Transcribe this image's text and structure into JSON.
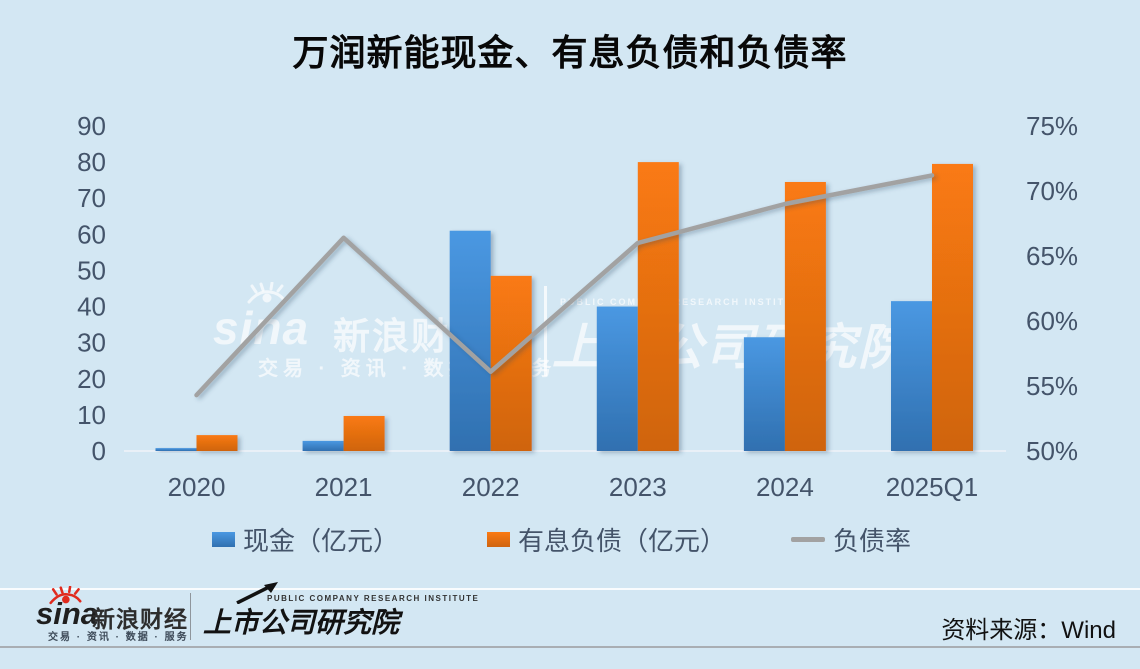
{
  "title": "万润新能现金、有息负债和负债率",
  "chart_data": {
    "type": "bar+line",
    "title": "万润新能现金、有息负债和负债率",
    "categories": [
      "2020",
      "2021",
      "2022",
      "2023",
      "2024",
      "2025Q1"
    ],
    "series": [
      {
        "name": "现金（亿元）",
        "type": "bar",
        "axis": "left",
        "values": [
          0.8,
          2.8,
          61,
          40,
          31.5,
          41.5
        ]
      },
      {
        "name": "有息负债（亿元）",
        "type": "bar",
        "axis": "left",
        "values": [
          4.4,
          9.7,
          48.5,
          80,
          74.5,
          79.5
        ]
      },
      {
        "name": "负债率",
        "type": "line",
        "axis": "right",
        "unit": "%",
        "values": [
          54.3,
          66.4,
          56.1,
          66.0,
          69.0,
          71.2
        ]
      }
    ],
    "left_axis": {
      "min": 0,
      "max": 90,
      "step": 10,
      "ticks": [
        "90",
        "80",
        "70",
        "60",
        "50",
        "40",
        "30",
        "20",
        "10",
        "0"
      ]
    },
    "right_axis": {
      "min": 50,
      "max": 75,
      "step": 5,
      "ticks": [
        "75%",
        "70%",
        "65%",
        "60%",
        "55%",
        "50%"
      ]
    },
    "grid": false,
    "legend_position": "bottom",
    "source": "Wind"
  },
  "legend": {
    "items": [
      {
        "label": "现金（亿元）",
        "swatch": "blue-square"
      },
      {
        "label": "有息负债（亿元）",
        "swatch": "orange-square"
      },
      {
        "label": "负债率",
        "swatch": "gray-line"
      }
    ]
  },
  "watermarks": {
    "sina_brand": "sina",
    "sina_name": "新浪财经",
    "sina_services": "交易 · 资讯 · 数据 · 服务",
    "pcri_en": "PUBLIC COMPANY RESEARCH INSTITUTE",
    "pcri_name": "上市公司研究院",
    "eye_icon": "sina-eye-icon"
  },
  "footer": {
    "sina_brand": "sina",
    "sina_name": "新浪财经",
    "sina_services": "交易 · 资讯 · 数据 · 服务",
    "pcri_en": "PUBLIC COMPANY RESEARCH INSTITUTE",
    "pcri_name": "上市公司研究院",
    "source": "资料来源：Wind",
    "eye_icon": "sina-eye-icon",
    "arrow_icon": "arrow-up-right-icon"
  },
  "colors": {
    "background": "#d3e7f3",
    "cash_top": "#4a98e2",
    "cash_bottom": "#3070b0",
    "debt_top": "#fa7a12",
    "debt_bottom": "#cf6410",
    "ratio_line": "#a2a2a2",
    "axis_text": "#44546a",
    "title_text": "#080808"
  }
}
